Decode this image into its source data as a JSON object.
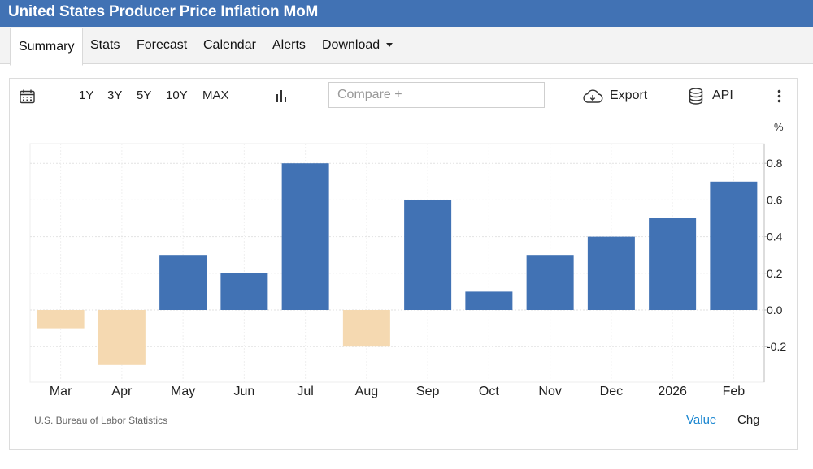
{
  "header": {
    "title": "United States Producer Price Inflation MoM"
  },
  "tabs": [
    {
      "label": "Summary",
      "active": true
    },
    {
      "label": "Stats"
    },
    {
      "label": "Forecast"
    },
    {
      "label": "Calendar"
    },
    {
      "label": "Alerts"
    },
    {
      "label": "Download",
      "has_dropdown": true
    }
  ],
  "toolbar": {
    "ranges": [
      "1Y",
      "3Y",
      "5Y",
      "10Y",
      "MAX"
    ],
    "compare_placeholder": "Compare +",
    "export_label": "Export",
    "api_label": "API"
  },
  "colors": {
    "header_bg": "#4172b4",
    "positive_bar": "#4172b4",
    "negative_bar": "#f5d9b1",
    "link": "#1a86d0"
  },
  "footer": {
    "source": "U.S. Bureau of Labor Statistics",
    "value_label": "Value",
    "chg_label": "Chg"
  },
  "chart_data": {
    "type": "bar",
    "title": "United States Producer Price Inflation MoM",
    "unit": "%",
    "categories": [
      "Mar",
      "Apr",
      "May",
      "Jun",
      "Jul",
      "Aug",
      "Sep",
      "Oct",
      "Nov",
      "Dec",
      "2026",
      "Feb"
    ],
    "values": [
      -0.1,
      -0.3,
      0.3,
      0.2,
      0.8,
      -0.2,
      0.6,
      0.1,
      0.3,
      0.4,
      0.5,
      0.7
    ],
    "yticks": [
      -0.2,
      0.0,
      0.2,
      0.4,
      0.6,
      0.8
    ],
    "ytick_labels": [
      "-0.2",
      "0.0",
      "0.2",
      "0.4",
      "0.6",
      "0.8"
    ],
    "ylim": [
      -0.41,
      0.9
    ],
    "y_axis_side": "right",
    "grid": true
  }
}
